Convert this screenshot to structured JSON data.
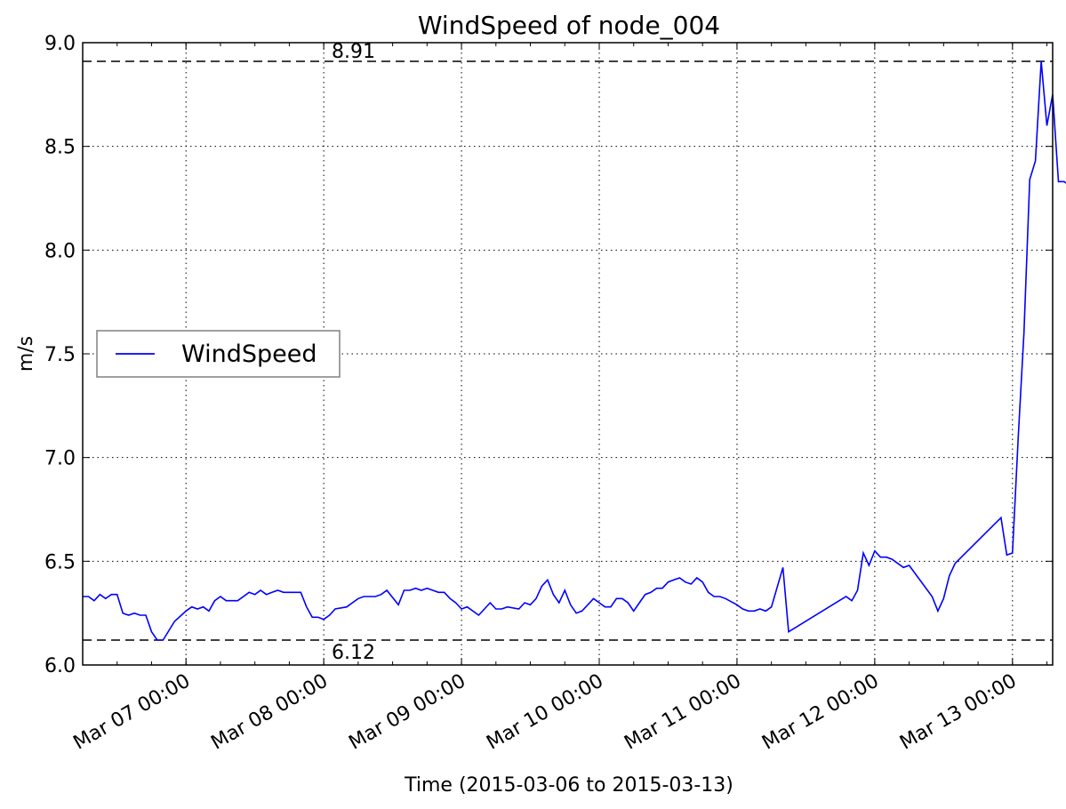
{
  "chart_data": {
    "type": "line",
    "title": "WindSpeed of node_004",
    "xlabel": "Time (2015-03-06 to 2015-03-13)",
    "ylabel": "m/s",
    "ylim": [
      6.0,
      9.0
    ],
    "yticks": [
      6.0,
      6.5,
      7.0,
      7.5,
      8.0,
      8.5,
      9.0
    ],
    "ytick_labels": [
      "6.0",
      "6.5",
      "7.0",
      "7.5",
      "8.0",
      "8.5",
      "9.0"
    ],
    "xlim": [
      "2015-03-06 06:00",
      "2015-03-13 07:00"
    ],
    "xticks": [
      "2015-03-07 00:00",
      "2015-03-08 00:00",
      "2015-03-09 00:00",
      "2015-03-10 00:00",
      "2015-03-11 00:00",
      "2015-03-12 00:00",
      "2015-03-13 00:00"
    ],
    "xtick_labels": [
      "Mar 07 00:00",
      "Mar 08 00:00",
      "Mar 09 00:00",
      "Mar 10 00:00",
      "Mar 11 00:00",
      "Mar 12 00:00",
      "Mar 13 00:00"
    ],
    "grid": true,
    "legend": {
      "position": "center-left",
      "entries": [
        "WindSpeed"
      ]
    },
    "reference_lines": [
      {
        "y": 8.91,
        "label": "8.91",
        "style": "dashed"
      },
      {
        "y": 6.12,
        "label": "6.12",
        "style": "dashed"
      }
    ],
    "series": [
      {
        "name": "WindSpeed",
        "color": "#0000ff",
        "points": [
          [
            "2015-03-06 06:00",
            6.33
          ],
          [
            "2015-03-06 07:00",
            6.33
          ],
          [
            "2015-03-06 08:00",
            6.31
          ],
          [
            "2015-03-06 09:00",
            6.34
          ],
          [
            "2015-03-06 10:00",
            6.32
          ],
          [
            "2015-03-06 11:00",
            6.34
          ],
          [
            "2015-03-06 12:00",
            6.34
          ],
          [
            "2015-03-06 13:00",
            6.25
          ],
          [
            "2015-03-06 14:00",
            6.24
          ],
          [
            "2015-03-06 15:00",
            6.25
          ],
          [
            "2015-03-06 16:00",
            6.24
          ],
          [
            "2015-03-06 17:00",
            6.24
          ],
          [
            "2015-03-06 18:00",
            6.16
          ],
          [
            "2015-03-06 19:00",
            6.12
          ],
          [
            "2015-03-06 20:00",
            6.12
          ],
          [
            "2015-03-06 22:00",
            6.21
          ],
          [
            "2015-03-07 00:00",
            6.26
          ],
          [
            "2015-03-07 01:00",
            6.28
          ],
          [
            "2015-03-07 02:00",
            6.27
          ],
          [
            "2015-03-07 03:00",
            6.28
          ],
          [
            "2015-03-07 04:00",
            6.26
          ],
          [
            "2015-03-07 05:00",
            6.31
          ],
          [
            "2015-03-07 06:00",
            6.33
          ],
          [
            "2015-03-07 07:00",
            6.31
          ],
          [
            "2015-03-07 08:00",
            6.31
          ],
          [
            "2015-03-07 09:00",
            6.31
          ],
          [
            "2015-03-07 10:00",
            6.33
          ],
          [
            "2015-03-07 11:00",
            6.35
          ],
          [
            "2015-03-07 12:00",
            6.34
          ],
          [
            "2015-03-07 13:00",
            6.36
          ],
          [
            "2015-03-07 14:00",
            6.34
          ],
          [
            "2015-03-07 15:00",
            6.35
          ],
          [
            "2015-03-07 16:00",
            6.36
          ],
          [
            "2015-03-07 17:00",
            6.35
          ],
          [
            "2015-03-07 18:00",
            6.35
          ],
          [
            "2015-03-07 20:00",
            6.35
          ],
          [
            "2015-03-07 21:00",
            6.28
          ],
          [
            "2015-03-07 22:00",
            6.23
          ],
          [
            "2015-03-07 23:00",
            6.23
          ],
          [
            "2015-03-08 00:00",
            6.22
          ],
          [
            "2015-03-08 01:00",
            6.24
          ],
          [
            "2015-03-08 02:00",
            6.27
          ],
          [
            "2015-03-08 04:00",
            6.28
          ],
          [
            "2015-03-08 05:00",
            6.3
          ],
          [
            "2015-03-08 06:00",
            6.32
          ],
          [
            "2015-03-08 07:00",
            6.33
          ],
          [
            "2015-03-08 09:00",
            6.33
          ],
          [
            "2015-03-08 10:00",
            6.34
          ],
          [
            "2015-03-08 11:00",
            6.36
          ],
          [
            "2015-03-08 13:00",
            6.29
          ],
          [
            "2015-03-08 14:00",
            6.36
          ],
          [
            "2015-03-08 15:00",
            6.36
          ],
          [
            "2015-03-08 16:00",
            6.37
          ],
          [
            "2015-03-08 17:00",
            6.36
          ],
          [
            "2015-03-08 18:00",
            6.37
          ],
          [
            "2015-03-08 19:00",
            6.36
          ],
          [
            "2015-03-08 20:00",
            6.35
          ],
          [
            "2015-03-08 21:00",
            6.35
          ],
          [
            "2015-03-08 22:00",
            6.32
          ],
          [
            "2015-03-08 23:00",
            6.3
          ],
          [
            "2015-03-09 00:00",
            6.27
          ],
          [
            "2015-03-09 01:00",
            6.28
          ],
          [
            "2015-03-09 03:00",
            6.24
          ],
          [
            "2015-03-09 04:00",
            6.27
          ],
          [
            "2015-03-09 05:00",
            6.3
          ],
          [
            "2015-03-09 06:00",
            6.27
          ],
          [
            "2015-03-09 07:00",
            6.27
          ],
          [
            "2015-03-09 08:00",
            6.28
          ],
          [
            "2015-03-09 10:00",
            6.27
          ],
          [
            "2015-03-09 11:00",
            6.3
          ],
          [
            "2015-03-09 12:00",
            6.29
          ],
          [
            "2015-03-09 13:00",
            6.32
          ],
          [
            "2015-03-09 14:00",
            6.38
          ],
          [
            "2015-03-09 15:00",
            6.41
          ],
          [
            "2015-03-09 16:00",
            6.34
          ],
          [
            "2015-03-09 17:00",
            6.3
          ],
          [
            "2015-03-09 18:00",
            6.36
          ],
          [
            "2015-03-09 19:00",
            6.29
          ],
          [
            "2015-03-09 20:00",
            6.25
          ],
          [
            "2015-03-09 21:00",
            6.26
          ],
          [
            "2015-03-09 22:00",
            6.29
          ],
          [
            "2015-03-09 23:00",
            6.32
          ],
          [
            "2015-03-10 00:00",
            6.3
          ],
          [
            "2015-03-10 01:00",
            6.28
          ],
          [
            "2015-03-10 02:00",
            6.28
          ],
          [
            "2015-03-10 03:00",
            6.32
          ],
          [
            "2015-03-10 04:00",
            6.32
          ],
          [
            "2015-03-10 05:00",
            6.3
          ],
          [
            "2015-03-10 06:00",
            6.26
          ],
          [
            "2015-03-10 07:00",
            6.3
          ],
          [
            "2015-03-10 08:00",
            6.34
          ],
          [
            "2015-03-10 09:00",
            6.35
          ],
          [
            "2015-03-10 10:00",
            6.37
          ],
          [
            "2015-03-10 11:00",
            6.37
          ],
          [
            "2015-03-10 12:00",
            6.4
          ],
          [
            "2015-03-10 13:00",
            6.41
          ],
          [
            "2015-03-10 14:00",
            6.42
          ],
          [
            "2015-03-10 15:00",
            6.4
          ],
          [
            "2015-03-10 16:00",
            6.39
          ],
          [
            "2015-03-10 17:00",
            6.42
          ],
          [
            "2015-03-10 18:00",
            6.4
          ],
          [
            "2015-03-10 19:00",
            6.35
          ],
          [
            "2015-03-10 20:00",
            6.33
          ],
          [
            "2015-03-10 21:00",
            6.33
          ],
          [
            "2015-03-10 22:00",
            6.32
          ],
          [
            "2015-03-11 00:00",
            6.29
          ],
          [
            "2015-03-11 01:00",
            6.27
          ],
          [
            "2015-03-11 02:00",
            6.26
          ],
          [
            "2015-03-11 03:00",
            6.26
          ],
          [
            "2015-03-11 04:00",
            6.27
          ],
          [
            "2015-03-11 05:00",
            6.26
          ],
          [
            "2015-03-11 06:00",
            6.28
          ],
          [
            "2015-03-11 08:00",
            6.47
          ],
          [
            "2015-03-11 09:00",
            6.16
          ],
          [
            "2015-03-11 19:00",
            6.33
          ],
          [
            "2015-03-11 20:00",
            6.31
          ],
          [
            "2015-03-11 21:00",
            6.36
          ],
          [
            "2015-03-11 22:00",
            6.54
          ],
          [
            "2015-03-11 23:00",
            6.48
          ],
          [
            "2015-03-12 00:00",
            6.55
          ],
          [
            "2015-03-12 01:00",
            6.52
          ],
          [
            "2015-03-12 02:00",
            6.52
          ],
          [
            "2015-03-12 03:00",
            6.51
          ],
          [
            "2015-03-12 04:00",
            6.49
          ],
          [
            "2015-03-12 05:00",
            6.47
          ],
          [
            "2015-03-12 06:00",
            6.48
          ],
          [
            "2015-03-12 10:00",
            6.33
          ],
          [
            "2015-03-12 11:00",
            6.26
          ],
          [
            "2015-03-12 12:00",
            6.32
          ],
          [
            "2015-03-12 13:00",
            6.43
          ],
          [
            "2015-03-12 14:00",
            6.49
          ],
          [
            "2015-03-12 22:00",
            6.71
          ],
          [
            "2015-03-12 23:00",
            6.53
          ],
          [
            "2015-03-13 00:00",
            6.54
          ],
          [
            "2015-03-13 01:00",
            7.1
          ],
          [
            "2015-03-13 02:00",
            7.6
          ],
          [
            "2015-03-13 03:00",
            8.34
          ],
          [
            "2015-03-13 04:00",
            8.43
          ],
          [
            "2015-03-13 05:00",
            8.91
          ],
          [
            "2015-03-13 06:00",
            8.6
          ],
          [
            "2015-03-13 07:00",
            8.75
          ],
          [
            "2015-03-13 08:00",
            8.33
          ],
          [
            "2015-03-13 09:00",
            8.33
          ],
          [
            "2015-03-13 10:00",
            8.31
          ]
        ]
      }
    ]
  }
}
